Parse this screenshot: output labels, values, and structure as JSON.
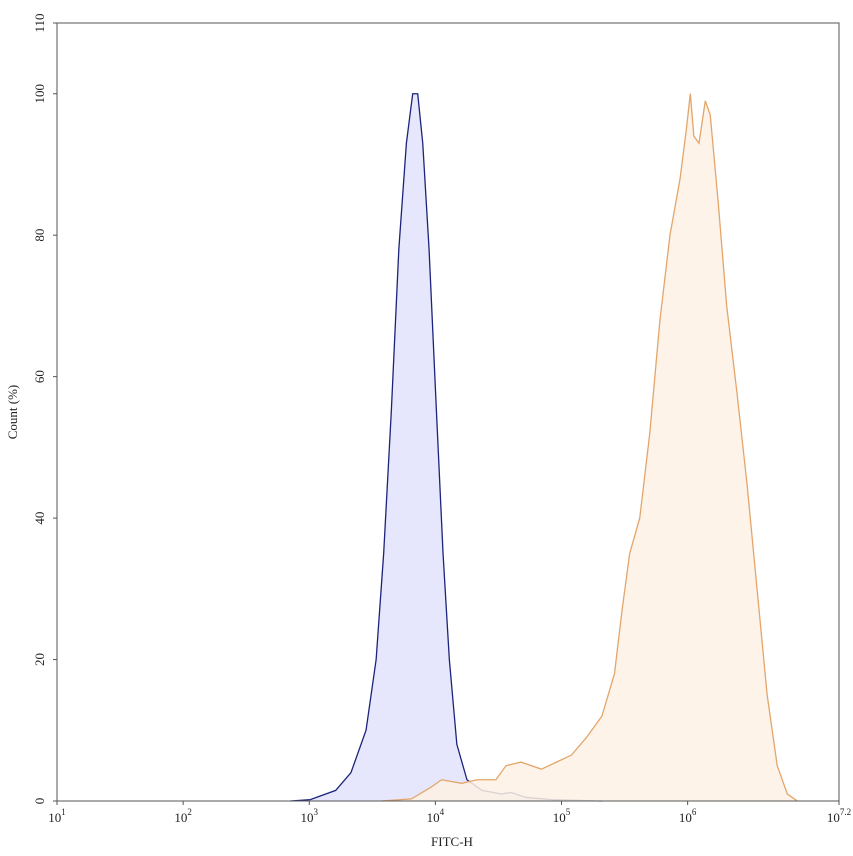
{
  "chart_data": {
    "type": "area",
    "xscale": "log",
    "x_label": "FITC-H",
    "y_label": "Count (%)",
    "xlim": [
      10,
      15848932
    ],
    "ylim": [
      0,
      110
    ],
    "xticks": [
      {
        "value": 10,
        "label": "10",
        "exponent": "1"
      },
      {
        "value": 100,
        "label": "10",
        "exponent": "2"
      },
      {
        "value": 1000,
        "label": "10",
        "exponent": "3"
      },
      {
        "value": 10000,
        "label": "10",
        "exponent": "4"
      },
      {
        "value": 100000,
        "label": "10",
        "exponent": "5"
      },
      {
        "value": 1000000,
        "label": "10",
        "exponent": "6"
      },
      {
        "value": 15848932,
        "label": "10",
        "exponent": "7.2"
      }
    ],
    "yticks": [
      0,
      20,
      40,
      60,
      80,
      100,
      110
    ],
    "series": [
      {
        "color": "#1c237a",
        "fill": "#e2e3fb",
        "x": [
          710,
          1020,
          1620,
          2140,
          2820,
          3390,
          3890,
          4470,
          5130,
          5890,
          6610,
          7240,
          7940,
          8910,
          10200,
          11500,
          12900,
          14800,
          17800,
          23400,
          33100,
          39800,
          52500,
          83200,
          209000
        ],
        "values": [
          0,
          0.2,
          1.5,
          4,
          10,
          20,
          35,
          55,
          78,
          93,
          100,
          100,
          93,
          78,
          55,
          35,
          20,
          8,
          3,
          1.5,
          1,
          1.2,
          0.5,
          0.2,
          0
        ]
      },
      {
        "color": "#e3a56a",
        "fill": "#fdf1e4",
        "x": [
          3720,
          6460,
          9330,
          11200,
          16200,
          21400,
          30200,
          36300,
          47900,
          69200,
          91200,
          120000,
          158000,
          209000,
          263000,
          302000,
          347000,
          417000,
          501000,
          603000,
          724000,
          871000,
          977000,
          1050000,
          1120000,
          1230000,
          1380000,
          1510000,
          1740000,
          2040000,
          2450000,
          2950000,
          3550000,
          4270000,
          5130000,
          6170000,
          7410000
        ],
        "values": [
          0,
          0.3,
          2,
          3,
          2.5,
          3,
          3,
          5,
          5.5,
          4.5,
          5.5,
          6.5,
          9,
          12,
          18,
          27,
          35,
          40,
          52,
          68,
          80,
          88,
          95,
          100,
          94,
          93,
          99,
          97,
          85,
          70,
          58,
          45,
          30,
          15,
          5,
          1,
          0
        ]
      }
    ]
  }
}
